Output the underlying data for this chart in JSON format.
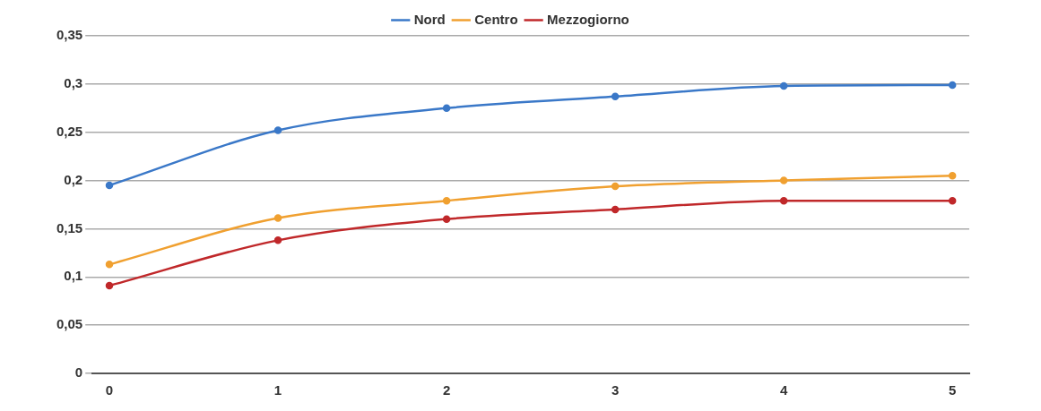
{
  "chart_data": {
    "type": "line",
    "x": [
      0,
      1,
      2,
      3,
      4,
      5
    ],
    "series": [
      {
        "name": "Nord",
        "color": "#3a78c8",
        "values": [
          0.195,
          0.252,
          0.275,
          0.287,
          0.298,
          0.299
        ]
      },
      {
        "name": "Centro",
        "color": "#f0a030",
        "values": [
          0.113,
          0.161,
          0.179,
          0.194,
          0.2,
          0.205
        ]
      },
      {
        "name": "Mezzogiorno",
        "color": "#c0282a",
        "values": [
          0.091,
          0.138,
          0.16,
          0.17,
          0.179,
          0.179
        ]
      }
    ],
    "xlim": [
      -0.1,
      5.1
    ],
    "xticks": [
      0,
      1,
      2,
      3,
      4,
      5
    ],
    "ylim": [
      0,
      0.35
    ],
    "yticks": [
      0,
      {
        "value": 0.05,
        "label": "0,05"
      },
      {
        "value": 0.1,
        "label": "0,1"
      },
      {
        "value": 0.15,
        "label": "0,15"
      },
      {
        "value": 0.2,
        "label": "0,2"
      },
      {
        "value": 0.25,
        "label": "0,25"
      },
      {
        "value": 0.3,
        "label": "0,3"
      },
      {
        "value": 0.35,
        "label": "0,35"
      }
    ],
    "grid": "y",
    "legend": "top",
    "marker": "circle",
    "line_style": "solid"
  }
}
